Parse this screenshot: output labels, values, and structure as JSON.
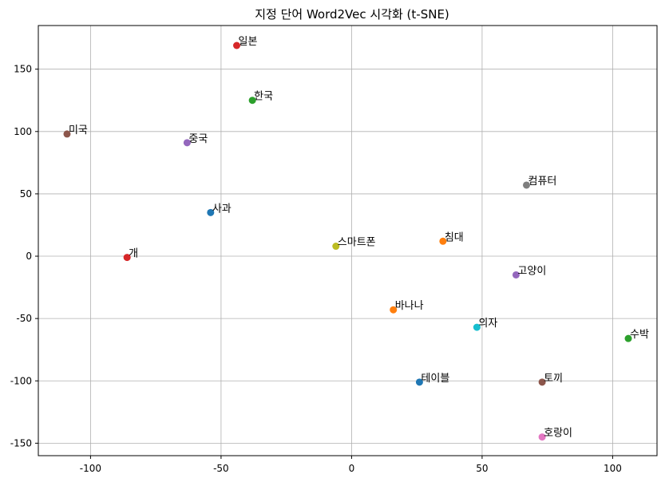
{
  "chart_data": {
    "type": "scatter",
    "title": "지정 단어 Word2Vec 시각화 (t-SNE)",
    "xlabel": "",
    "ylabel": "",
    "xlim": [
      -120,
      117
    ],
    "ylim": [
      -160,
      185
    ],
    "xticks": [
      -100,
      -50,
      0,
      50,
      100
    ],
    "yticks": [
      -150,
      -100,
      -50,
      0,
      50,
      100,
      150
    ],
    "xtick_labels": [
      "-100",
      "-50",
      "0",
      "50",
      "100"
    ],
    "ytick_labels": [
      "-150",
      "-100",
      "-50",
      "0",
      "50",
      "100",
      "150"
    ],
    "grid": true,
    "points": [
      {
        "label": "사과",
        "x": -54,
        "y": 35,
        "color": "#1f77b4"
      },
      {
        "label": "바나나",
        "x": 16,
        "y": -43,
        "color": "#ff7f0e"
      },
      {
        "label": "수박",
        "x": 106,
        "y": -66,
        "color": "#2ca02c"
      },
      {
        "label": "개",
        "x": -86,
        "y": -1,
        "color": "#d62728"
      },
      {
        "label": "고양이",
        "x": 63,
        "y": -15,
        "color": "#9467bd"
      },
      {
        "label": "토끼",
        "x": 73,
        "y": -101,
        "color": "#8c564b"
      },
      {
        "label": "호랑이",
        "x": 73,
        "y": -145,
        "color": "#e377c2"
      },
      {
        "label": "컴퓨터",
        "x": 67,
        "y": 57,
        "color": "#7f7f7f"
      },
      {
        "label": "스마트폰",
        "x": -6,
        "y": 8,
        "color": "#bcbd22"
      },
      {
        "label": "의자",
        "x": 48,
        "y": -57,
        "color": "#17becf"
      },
      {
        "label": "테이블",
        "x": 26,
        "y": -101,
        "color": "#1f77b4"
      },
      {
        "label": "침대",
        "x": 35,
        "y": 12,
        "color": "#ff7f0e"
      },
      {
        "label": "한국",
        "x": -38,
        "y": 125,
        "color": "#2ca02c"
      },
      {
        "label": "일본",
        "x": -44,
        "y": 169,
        "color": "#d62728"
      },
      {
        "label": "중국",
        "x": -63,
        "y": 91,
        "color": "#9467bd"
      },
      {
        "label": "미국",
        "x": -109,
        "y": 98,
        "color": "#8c564b"
      }
    ]
  }
}
